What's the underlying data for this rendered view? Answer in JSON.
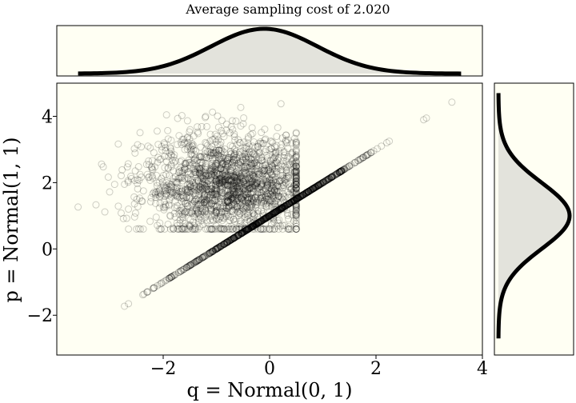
{
  "chart_data": {
    "type": "scatter",
    "title": "Average sampling cost of 2.020",
    "xlabel": "q = Normal(0, 1)",
    "ylabel": "p = Normal(1, 1)",
    "xlim": [
      -4,
      4
    ],
    "ylim": [
      -3.2,
      5
    ],
    "xticks": [
      -2,
      0,
      2,
      4
    ],
    "xtick_labels": [
      "−2",
      "0",
      "2",
      "4"
    ],
    "yticks": [
      -2,
      0,
      2,
      4
    ],
    "ytick_labels": [
      "−2",
      "0",
      "2",
      "4"
    ],
    "colors": {
      "background": "#fffff3",
      "marker": "#000000",
      "density_fill": "#e3e3dc",
      "density_line": "#000000"
    },
    "series": [
      {
        "name": "accepted samples on diagonal (p = q + 1)",
        "x_range": [
          -2.8,
          3.6
        ],
        "relation": "y = x + 1",
        "count": 900
      },
      {
        "name": "rejected samples cloud",
        "x_range": [
          -3.6,
          0.5
        ],
        "y_range": [
          0.6,
          4.6
        ],
        "count": 1900
      }
    ],
    "marginal_x": {
      "distribution": "Normal(0, 1)",
      "x_range": [
        -3.6,
        3.6
      ],
      "x_peak": -0.1
    },
    "marginal_y": {
      "distribution": "Normal(1, 1)",
      "y_range": [
        -2.7,
        4.7
      ],
      "y_peak": 1
    }
  }
}
